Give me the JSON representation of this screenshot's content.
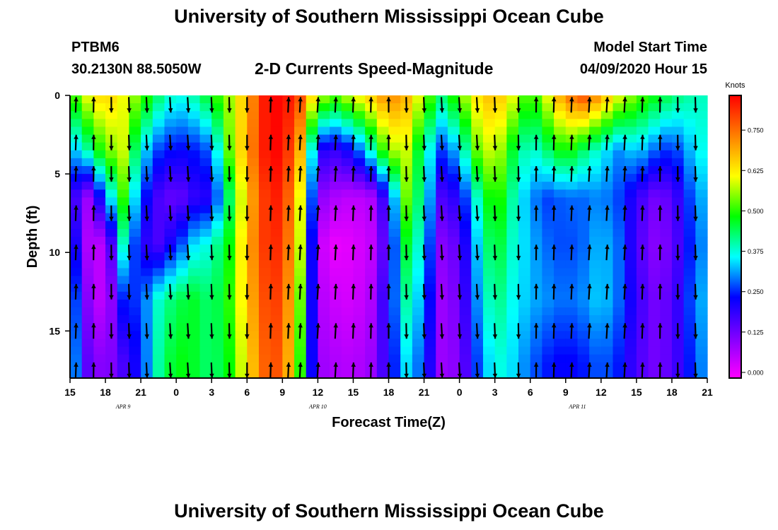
{
  "header": {
    "title_top": "University of Southern Mississippi Ocean Cube",
    "title_bottom": "University of Southern Mississippi Ocean Cube",
    "station": "PTBM6",
    "coords": "30.2130N 88.5050W",
    "subtitle": "2-D Currents Speed-Magnitude",
    "model_start_label": "Model Start Time",
    "model_start_value": "04/09/2020 Hour 15"
  },
  "chart_data": {
    "type": "heatmap",
    "title": "2-D Currents Speed-Magnitude",
    "xlabel": "Forecast Time(Z)",
    "ylabel": "Depth (ft)",
    "x_ticks": [
      "15",
      "18",
      "21",
      "0",
      "3",
      "6",
      "9",
      "12",
      "15",
      "18",
      "21",
      "0",
      "3",
      "6",
      "9",
      "12",
      "15",
      "18",
      "21"
    ],
    "x_hours": [
      0,
      3,
      6,
      9,
      12,
      15,
      18,
      21,
      24,
      27,
      30,
      33,
      36,
      39,
      42,
      45,
      48,
      51,
      54
    ],
    "day_labels": [
      {
        "text": "APR  9",
        "hour": 4.5
      },
      {
        "text": "APR  10",
        "hour": 21
      },
      {
        "text": "APR  11",
        "hour": 43
      }
    ],
    "y_ticks": [
      0,
      5,
      10,
      15
    ],
    "ylim": [
      0,
      18
    ],
    "xlim": [
      0,
      54
    ],
    "colorbar": {
      "label": "Knots",
      "ticks": [
        "0.000",
        "0.125",
        "0.250",
        "0.375",
        "0.500",
        "0.625",
        "0.750"
      ],
      "range": [
        0,
        0.875
      ],
      "colors": [
        "#ff00ff",
        "#8000ff",
        "#0000ff",
        "#00ffff",
        "#00ff00",
        "#ffff00",
        "#ff8000",
        "#ff0000"
      ]
    },
    "depths": [
      0,
      3.5,
      6.5,
      9.5,
      13,
      17
    ],
    "times": [
      0,
      1.5,
      3,
      4.5,
      6,
      7.5,
      9,
      10.5,
      12,
      13.5,
      15,
      16.5,
      18,
      19.5,
      21,
      22.5,
      24,
      25.5,
      27,
      28.5,
      30,
      31.5,
      33,
      34.5,
      36,
      37.5,
      39,
      40.5,
      42,
      43.5,
      45,
      46.5,
      48,
      49.5,
      51,
      52.5,
      54
    ],
    "speed": [
      [
        0.5,
        0.62,
        0.68,
        0.62,
        0.55,
        0.45,
        0.38,
        0.42,
        0.5,
        0.58,
        0.7,
        0.85,
        0.88,
        0.8,
        0.6,
        0.55,
        0.62,
        0.68,
        0.75,
        0.7,
        0.58,
        0.45,
        0.55,
        0.65,
        0.7,
        0.62,
        0.5,
        0.62,
        0.75,
        0.8,
        0.72,
        0.62,
        0.55,
        0.5,
        0.45,
        0.42,
        0.4
      ],
      [
        0.32,
        0.42,
        0.55,
        0.6,
        0.38,
        0.28,
        0.24,
        0.26,
        0.3,
        0.55,
        0.72,
        0.85,
        0.88,
        0.7,
        0.22,
        0.2,
        0.25,
        0.4,
        0.58,
        0.6,
        0.42,
        0.28,
        0.35,
        0.55,
        0.62,
        0.48,
        0.38,
        0.45,
        0.52,
        0.45,
        0.38,
        0.32,
        0.36,
        0.3,
        0.26,
        0.34,
        0.4
      ],
      [
        0.22,
        0.1,
        0.3,
        0.52,
        0.28,
        0.18,
        0.14,
        0.2,
        0.22,
        0.45,
        0.68,
        0.82,
        0.86,
        0.62,
        0.12,
        0.08,
        0.06,
        0.08,
        0.24,
        0.55,
        0.4,
        0.18,
        0.22,
        0.4,
        0.55,
        0.42,
        0.32,
        0.28,
        0.3,
        0.3,
        0.32,
        0.28,
        0.2,
        0.14,
        0.16,
        0.28,
        0.36
      ],
      [
        0.3,
        0.08,
        0.06,
        0.4,
        0.22,
        0.18,
        0.26,
        0.36,
        0.4,
        0.5,
        0.7,
        0.82,
        0.84,
        0.6,
        0.06,
        0.02,
        0.03,
        0.06,
        0.2,
        0.48,
        0.36,
        0.12,
        0.16,
        0.35,
        0.5,
        0.4,
        0.34,
        0.3,
        0.28,
        0.3,
        0.35,
        0.3,
        0.18,
        0.12,
        0.14,
        0.26,
        0.34
      ],
      [
        0.36,
        0.12,
        0.04,
        0.26,
        0.28,
        0.4,
        0.46,
        0.48,
        0.44,
        0.52,
        0.68,
        0.8,
        0.82,
        0.55,
        0.08,
        0.05,
        0.04,
        0.08,
        0.24,
        0.42,
        0.32,
        0.1,
        0.14,
        0.32,
        0.45,
        0.38,
        0.34,
        0.32,
        0.3,
        0.32,
        0.36,
        0.3,
        0.2,
        0.14,
        0.16,
        0.28,
        0.36
      ],
      [
        0.38,
        0.16,
        0.1,
        0.18,
        0.26,
        0.42,
        0.5,
        0.48,
        0.44,
        0.5,
        0.65,
        0.78,
        0.8,
        0.52,
        0.1,
        0.08,
        0.07,
        0.1,
        0.22,
        0.36,
        0.28,
        0.1,
        0.12,
        0.28,
        0.4,
        0.36,
        0.3,
        0.26,
        0.24,
        0.26,
        0.3,
        0.26,
        0.18,
        0.14,
        0.16,
        0.26,
        0.34
      ]
    ],
    "arrows": [
      {
        "times": [
          0.5,
          2,
          3.5,
          5,
          6.5,
          8.5,
          10,
          12,
          13.5,
          15,
          17,
          18.5,
          19.5,
          21,
          22.5,
          24,
          25.5,
          27,
          28.5,
          30,
          31.5,
          33,
          34.5,
          36,
          38,
          39.5,
          41,
          42.5,
          44,
          45.5,
          47,
          48.5,
          50,
          51.5,
          53
        ],
        "depths": [
          0.6,
          3,
          5,
          7.5,
          10,
          12.5,
          15,
          17.5
        ],
        "note": "flow vectors"
      }
    ]
  }
}
